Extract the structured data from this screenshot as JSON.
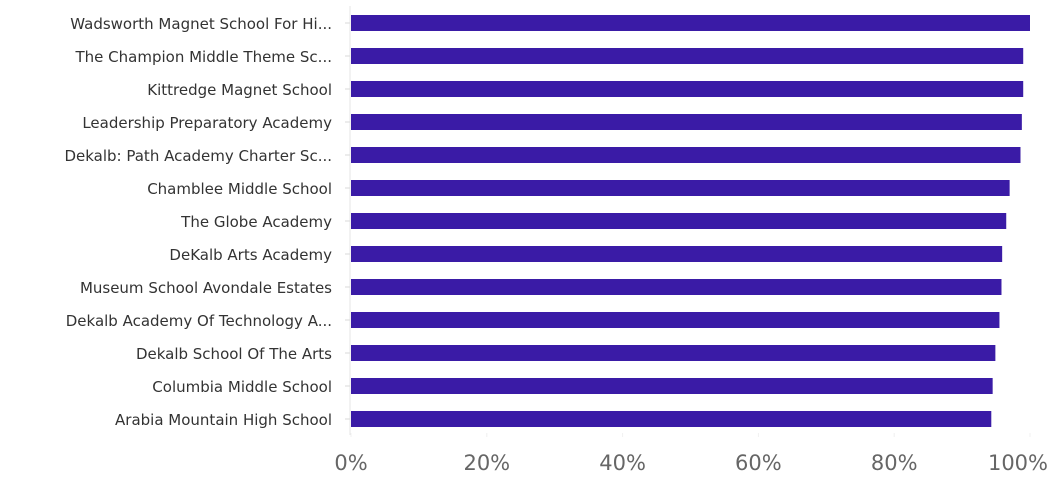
{
  "chart_data": {
    "type": "bar",
    "orientation": "horizontal",
    "title": "",
    "xlabel": "",
    "ylabel": "",
    "categories": [
      "Wadsworth Magnet School For Hi...",
      "The Champion Middle Theme Sc...",
      "Kittredge Magnet School",
      "Leadership Preparatory Academy",
      "Dekalb: Path Academy Charter Sc...",
      "Chamblee Middle School",
      "The Globe Academy",
      "DeKalb Arts Academy",
      "Museum School Avondale Estates",
      "Dekalb Academy Of Technology A...",
      "Dekalb School Of The Arts",
      "Columbia Middle School",
      "Arabia Mountain High School"
    ],
    "values": [
      1.0,
      0.99,
      0.99,
      0.988,
      0.986,
      0.97,
      0.965,
      0.959,
      0.958,
      0.955,
      0.949,
      0.945,
      0.943
    ],
    "xlim": [
      0,
      1.0
    ],
    "ticks": [
      {
        "value": 0.0,
        "label": "0%"
      },
      {
        "value": 0.2,
        "label": "20%"
      },
      {
        "value": 0.4,
        "label": "40%"
      },
      {
        "value": 0.6,
        "label": "60%"
      },
      {
        "value": 0.8,
        "label": "80%"
      },
      {
        "value": 1.0,
        "label": "100%"
      }
    ],
    "bar_color": "#3a1ba6",
    "grid": false,
    "legend": "none"
  }
}
